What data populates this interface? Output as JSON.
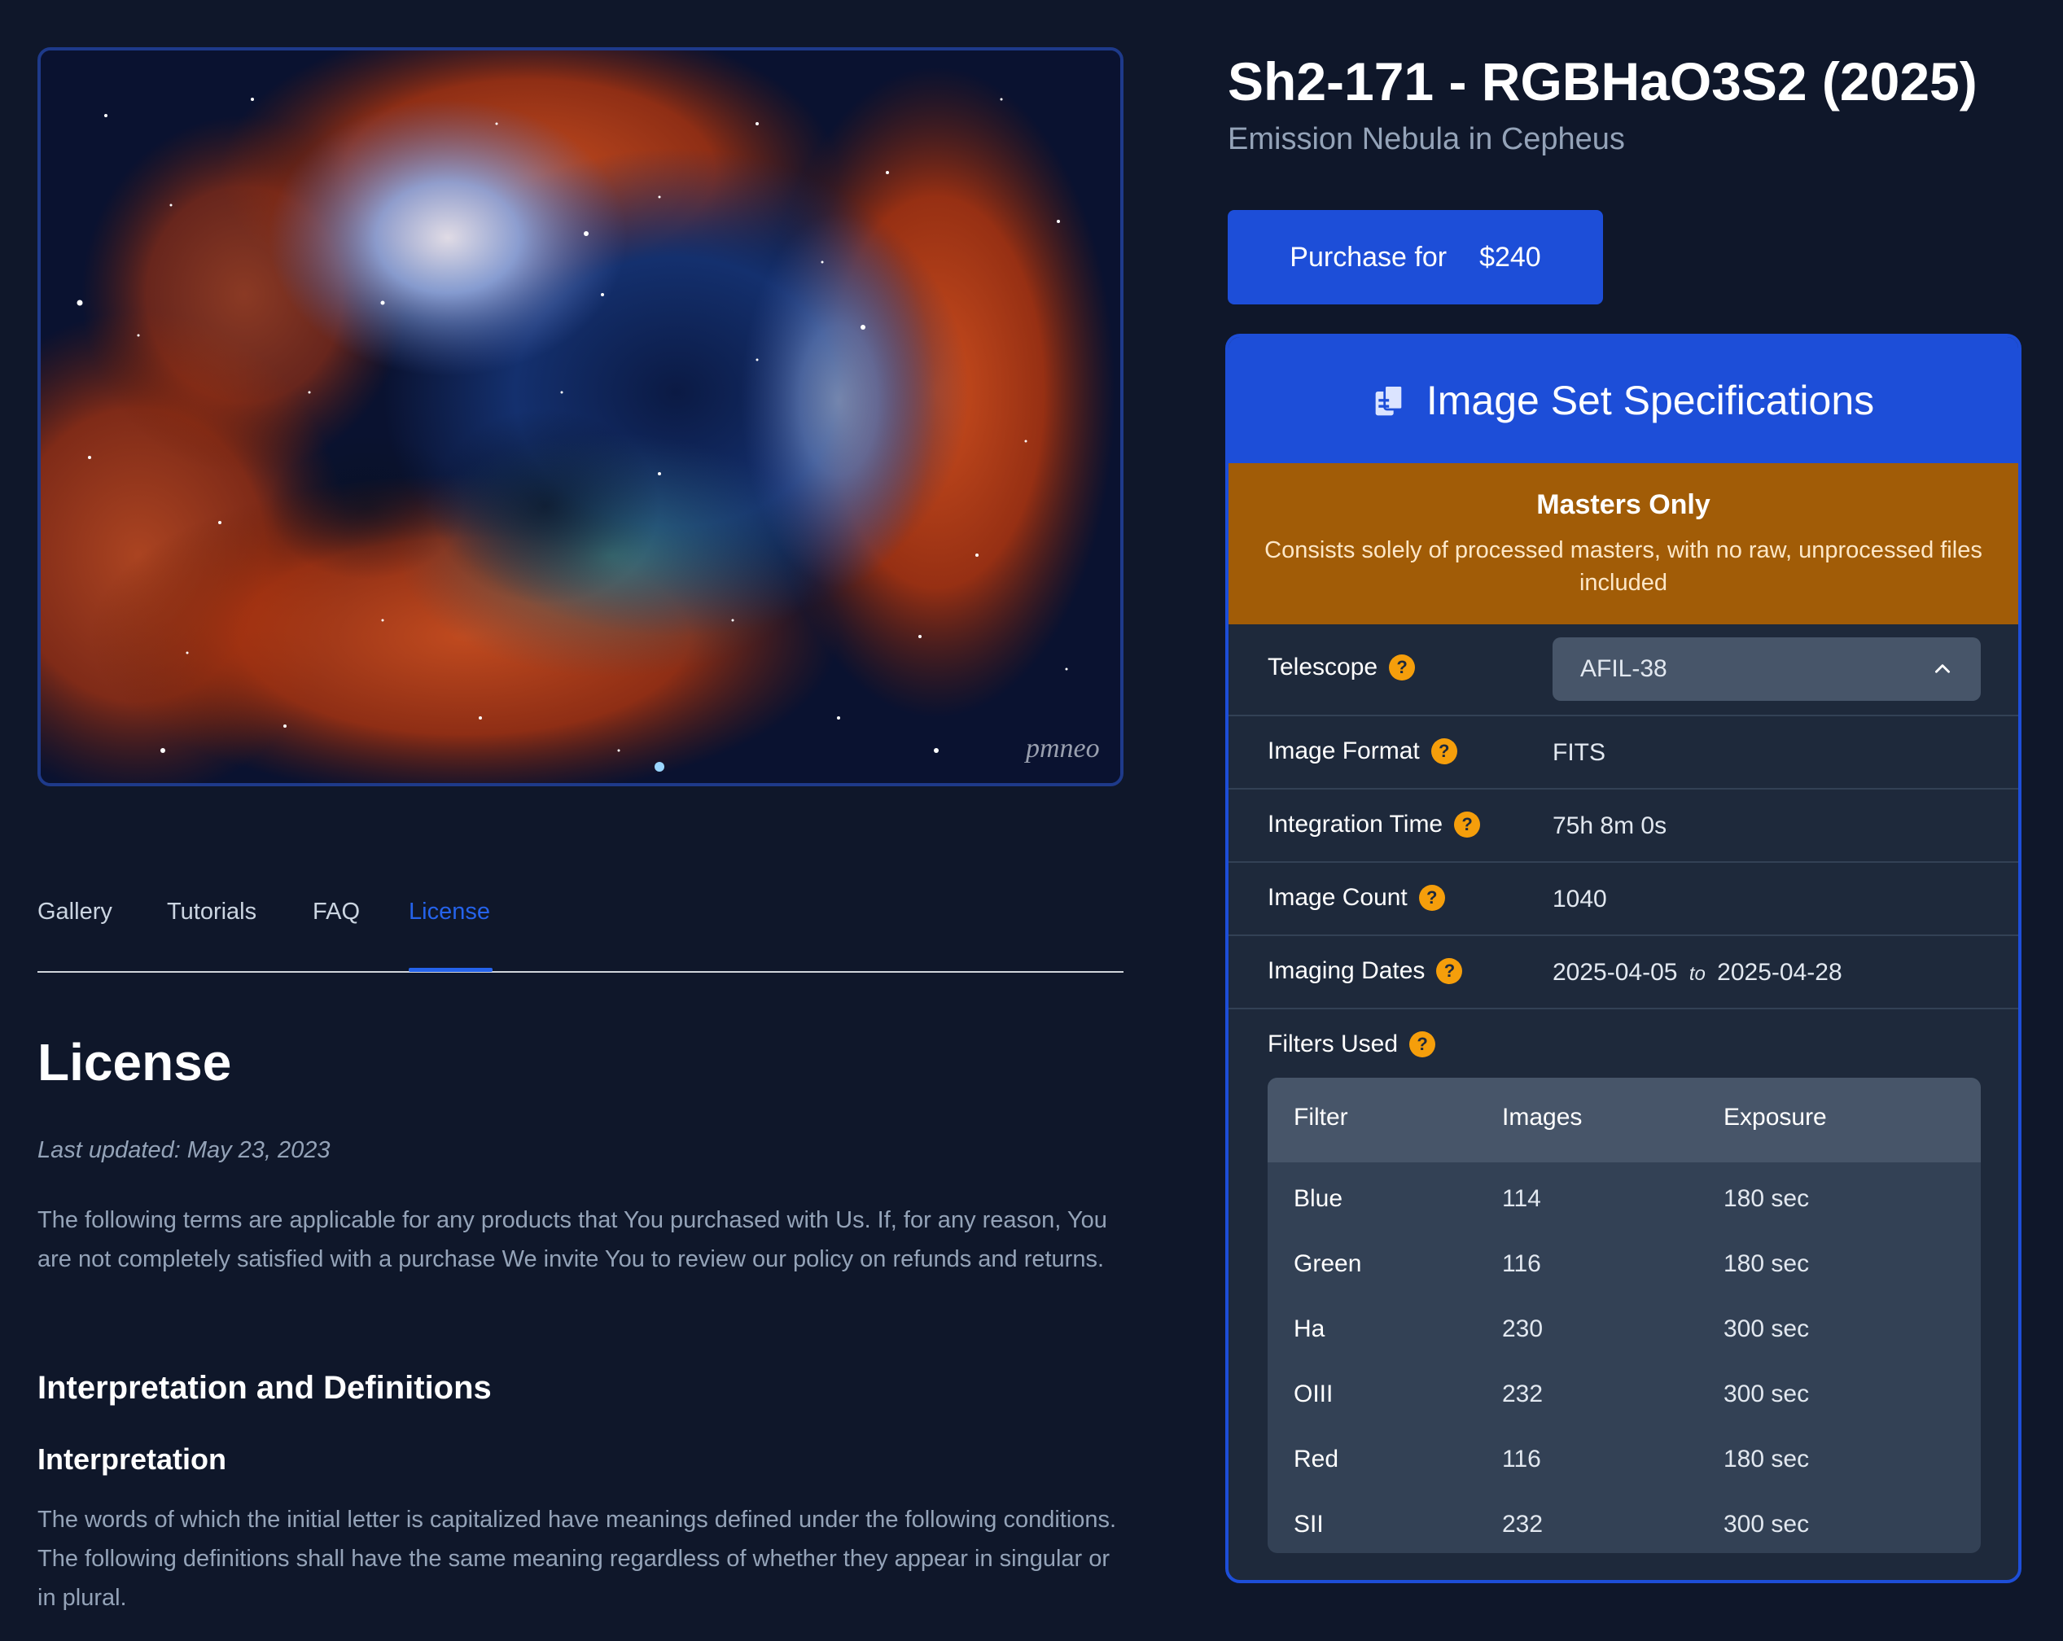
{
  "product": {
    "title": "Sh2-171 - RGBHaO3S2 (2025)",
    "subtitle": "Emission Nebula in Cepheus",
    "purchase_label": "Purchase for",
    "price": "$240"
  },
  "image": {
    "watermark": "pmneo"
  },
  "tabs": [
    {
      "label": "Gallery",
      "active": false
    },
    {
      "label": "Tutorials",
      "active": false
    },
    {
      "label": "FAQ",
      "active": false
    },
    {
      "label": "License",
      "active": true
    }
  ],
  "license": {
    "heading": "License",
    "last_updated": "Last updated: May 23, 2023",
    "intro": "The following terms are applicable for any products that You purchased with Us. If, for any reason, You are not completely satisfied with a purchase We invite You to review our policy on refunds and returns.",
    "section_heading": "Interpretation and Definitions",
    "sub_heading": "Interpretation",
    "interpretation_text": "The words of which the initial letter is capitalized have meanings defined under the following conditions. The following definitions shall have the same meaning regardless of whether they appear in singular or in plural."
  },
  "specs": {
    "heading": "Image Set Specifications",
    "masters_title": "Masters Only",
    "masters_desc": "Consists solely of processed masters, with no raw, unprocessed files included",
    "help_glyph": "?",
    "telescope_label": "Telescope",
    "telescope_value": "AFIL-38",
    "format_label": "Image Format",
    "format_value": "FITS",
    "integration_label": "Integration Time",
    "integration_value": "75h 8m 0s",
    "count_label": "Image Count",
    "count_value": "1040",
    "dates_label": "Imaging Dates",
    "date_start": "2025-04-05",
    "date_to": "to",
    "date_end": "2025-04-28",
    "filters_label": "Filters Used",
    "filters_headers": [
      "Filter",
      "Images",
      "Exposure"
    ],
    "filters": [
      {
        "name": "Blue",
        "images": "114",
        "exposure": "180 sec"
      },
      {
        "name": "Green",
        "images": "116",
        "exposure": "180 sec"
      },
      {
        "name": "Ha",
        "images": "230",
        "exposure": "300 sec"
      },
      {
        "name": "OIII",
        "images": "232",
        "exposure": "300 sec"
      },
      {
        "name": "Red",
        "images": "116",
        "exposure": "180 sec"
      },
      {
        "name": "SII",
        "images": "232",
        "exposure": "300 sec"
      }
    ]
  }
}
